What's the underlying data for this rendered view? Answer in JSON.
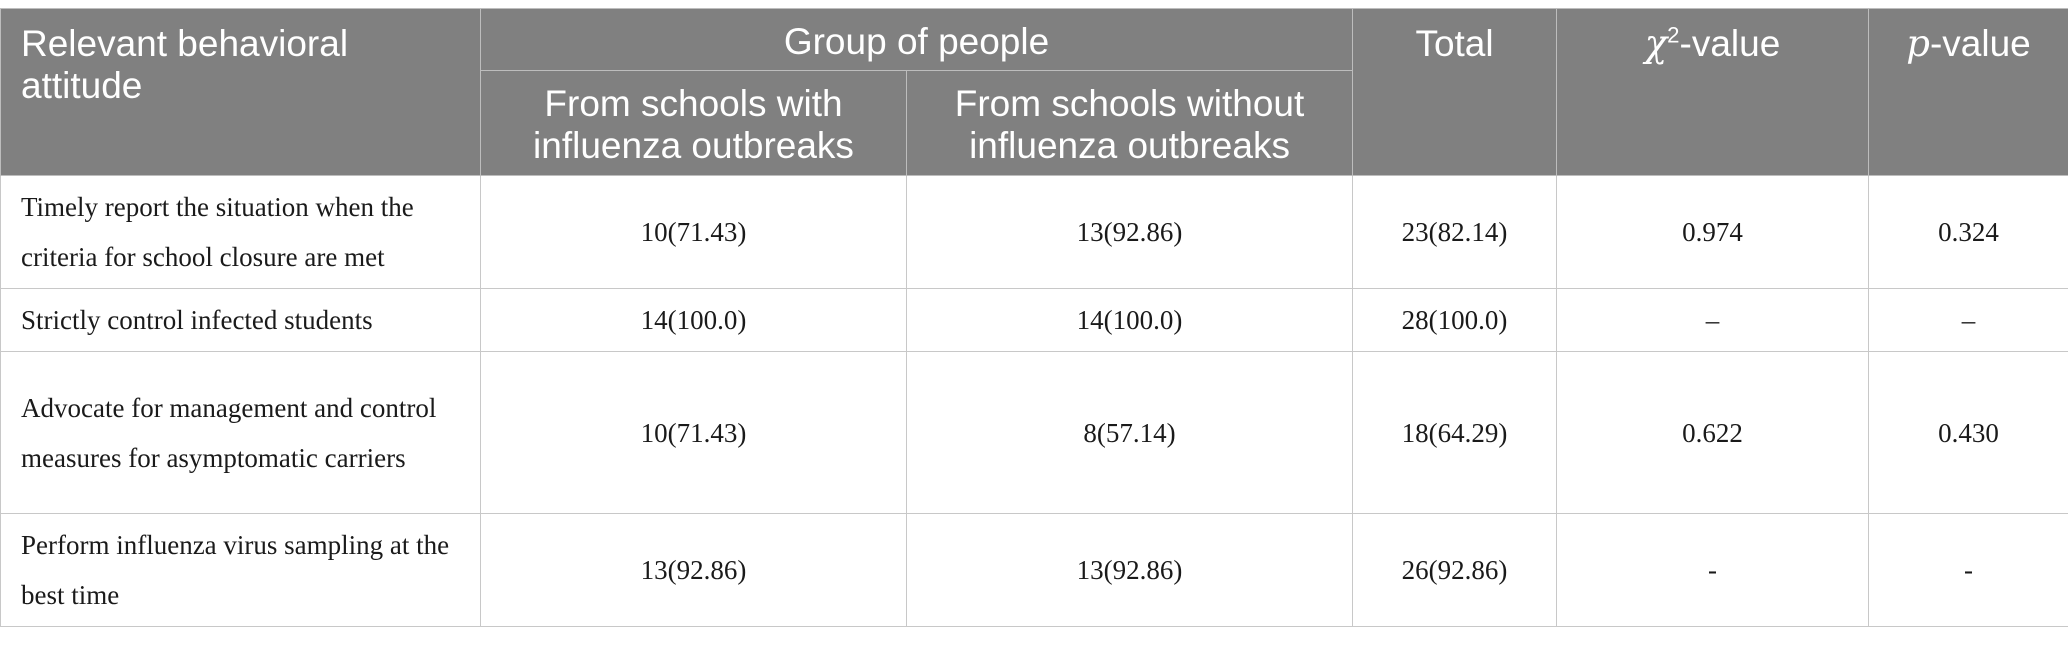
{
  "header": {
    "col1": "Relevant behavioral attitude",
    "group": "Group of people",
    "sub1": "From schools with influenza outbreaks",
    "sub2": "From schools without influenza outbreaks",
    "total": "Total",
    "chi_symbol": "χ",
    "chi_sup": "2",
    "chi_suffix": "-value",
    "p_symbol": "p",
    "p_suffix": "-value"
  },
  "rows": [
    {
      "label": "Timely report the situation when the criteria for school closure are met",
      "with": "10(71.43)",
      "without": "13(92.86)",
      "total": "23(82.14)",
      "chi": "0.974",
      "p": "0.324"
    },
    {
      "label": "Strictly control infected students",
      "with": "14(100.0)",
      "without": "14(100.0)",
      "total": "28(100.0)",
      "chi": "–",
      "p": "–"
    },
    {
      "label": "Advocate for management and control measures for asymptomatic carriers",
      "with": "10(71.43)",
      "without": "8(57.14)",
      "total": "18(64.29)",
      "chi": "0.622",
      "p": "0.430"
    },
    {
      "label": "Perform influenza virus sampling at the best time",
      "with": "13(92.86)",
      "without": "13(92.86)",
      "total": "26(92.86)",
      "chi": "-",
      "p": "-"
    }
  ]
}
